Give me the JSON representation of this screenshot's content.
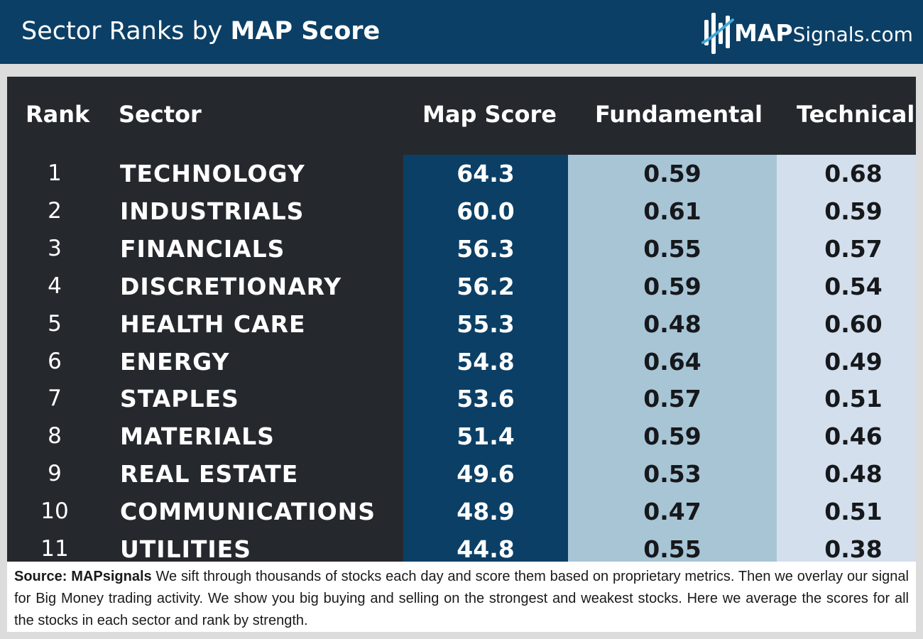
{
  "header": {
    "title_regular": "Sector Ranks by ",
    "title_bold": "MAP Score",
    "logo_bold": "MAP",
    "logo_rest": "Signals.com"
  },
  "colors": {
    "header_bg": "#0b3f66",
    "panel_bg": "#25292e",
    "map_score_col": "#0b3f66",
    "fundamental_col": "#a8c5d6",
    "technical_col": "#d4dfed",
    "logo_accent": "#3fa9d6"
  },
  "chart_data": {
    "type": "table",
    "title": "Sector Ranks by MAP Score",
    "columns": [
      "Rank",
      "Sector",
      "Map Score",
      "Fundamental",
      "Technical"
    ],
    "rows": [
      {
        "rank": "1",
        "sector": "TECHNOLOGY",
        "map_score": "64.3",
        "fundamental": "0.59",
        "technical": "0.68"
      },
      {
        "rank": "2",
        "sector": "INDUSTRIALS",
        "map_score": "60.0",
        "fundamental": "0.61",
        "technical": "0.59"
      },
      {
        "rank": "3",
        "sector": "FINANCIALS",
        "map_score": "56.3",
        "fundamental": "0.55",
        "technical": "0.57"
      },
      {
        "rank": "4",
        "sector": "DISCRETIONARY",
        "map_score": "56.2",
        "fundamental": "0.59",
        "technical": "0.54"
      },
      {
        "rank": "5",
        "sector": "HEALTH CARE",
        "map_score": "55.3",
        "fundamental": "0.48",
        "technical": "0.60"
      },
      {
        "rank": "6",
        "sector": "ENERGY",
        "map_score": "54.8",
        "fundamental": "0.64",
        "technical": "0.49"
      },
      {
        "rank": "7",
        "sector": "STAPLES",
        "map_score": "53.6",
        "fundamental": "0.57",
        "technical": "0.51"
      },
      {
        "rank": "8",
        "sector": "MATERIALS",
        "map_score": "51.4",
        "fundamental": "0.59",
        "technical": "0.46"
      },
      {
        "rank": "9",
        "sector": "REAL ESTATE",
        "map_score": "49.6",
        "fundamental": "0.53",
        "technical": "0.48"
      },
      {
        "rank": "10",
        "sector": "COMMUNICATIONS",
        "map_score": "48.9",
        "fundamental": "0.47",
        "technical": "0.51"
      },
      {
        "rank": "11",
        "sector": "UTILITIES",
        "map_score": "44.8",
        "fundamental": "0.55",
        "technical": "0.38"
      }
    ]
  },
  "footer": {
    "source_label": "Source:  MAPsignals",
    "text": "  We sift through thousands of stocks each day and score them based on proprietary metrics. Then we overlay our signal for Big Money trading activity. We show you big buying and selling on the strongest and weakest stocks. Here we average the scores for all the stocks in each sector and rank by strength."
  }
}
